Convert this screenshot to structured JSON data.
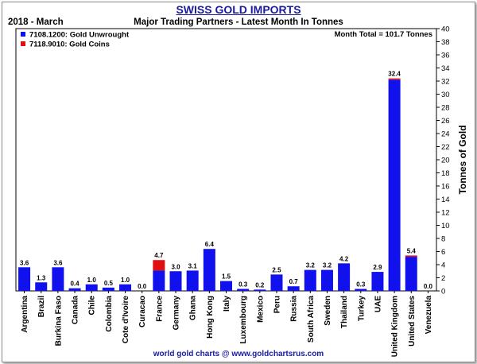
{
  "header": {
    "title": "SWISS GOLD IMPORTS",
    "subtitle": "Major Trading Partners - Latest Month In Tonnes",
    "period": "2018 - March"
  },
  "footer": "world gold charts @ www.goldchartsrus.com",
  "colors": {
    "unwrought": "#1111ee",
    "coins": "#e01010",
    "title": "#1a1aa0"
  },
  "chart_data": {
    "type": "bar",
    "stacked": true,
    "title": "SWISS GOLD IMPORTS",
    "subtitle": "Major Trading Partners - Latest Month In Tonnes",
    "ylabel": "Tonnes of Gold",
    "ylim": [
      0,
      40
    ],
    "yticks": [
      0,
      2,
      4,
      6,
      8,
      10,
      12,
      14,
      16,
      18,
      20,
      22,
      24,
      26,
      28,
      30,
      32,
      34,
      36,
      38,
      40
    ],
    "grid": false,
    "annotation": "Month Total = 101.7 Tonnes",
    "legend_position": "top-left",
    "categories": [
      "Argentina",
      "Brazil",
      "Burkina Faso",
      "Canada",
      "Chile",
      "Colombia",
      "Cote d'Ivoire",
      "Curacao",
      "France",
      "Germany",
      "Ghana",
      "Hong Kong",
      "Italy",
      "Luxembourg",
      "Mexico",
      "Peru",
      "Russia",
      "South Africa",
      "Sweden",
      "Thailand",
      "Turkey",
      "UAE",
      "United Kingdom",
      "United States",
      "Venezuela"
    ],
    "totals_labels": [
      "3.6",
      "1.3",
      "3.6",
      "0.4",
      "1.0",
      "0.5",
      "1.0",
      "0.0",
      "4.7",
      "3.0",
      "3.1",
      "6.4",
      "1.5",
      "0.3",
      "0.2",
      "2.5",
      "0.7",
      "3.2",
      "3.2",
      "4.2",
      "0.3",
      "2.9",
      "32.4",
      "5.4",
      "0.0"
    ],
    "series": [
      {
        "name": "7108.1200: Gold Unwrought",
        "color": "#1111ee",
        "values": [
          3.6,
          1.3,
          3.6,
          0.4,
          1.0,
          0.5,
          1.0,
          0.0,
          3.1,
          3.0,
          3.1,
          6.4,
          1.5,
          0.3,
          0.2,
          2.5,
          0.7,
          3.2,
          3.2,
          4.2,
          0.3,
          2.9,
          32.2,
          5.2,
          0.0
        ]
      },
      {
        "name": "7118.9010: Gold Coins",
        "color": "#e01010",
        "values": [
          0,
          0,
          0,
          0,
          0,
          0,
          0,
          0,
          1.6,
          0,
          0,
          0,
          0,
          0,
          0,
          0,
          0,
          0,
          0,
          0,
          0,
          0,
          0.2,
          0.2,
          0
        ]
      }
    ]
  }
}
